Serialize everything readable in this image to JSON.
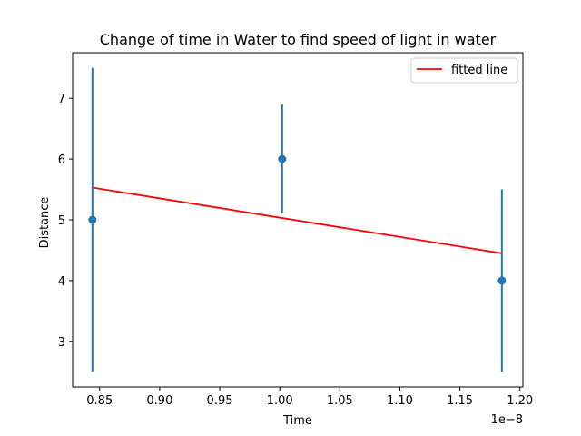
{
  "chart_data": {
    "type": "scatter",
    "title": "Change of time in Water to find speed of light in water",
    "xlabel": "Time",
    "ylabel": "Distance",
    "x_offset_label": "1e−8",
    "xlim": [
      0.8275,
      1.2025
    ],
    "ylim": [
      2.25,
      7.75
    ],
    "xticks": [
      0.85,
      0.9,
      0.95,
      1.0,
      1.05,
      1.1,
      1.15,
      1.2
    ],
    "xtick_labels": [
      "0.85",
      "0.90",
      "0.95",
      "1.00",
      "1.05",
      "1.10",
      "1.15",
      "1.20"
    ],
    "yticks": [
      3,
      4,
      5,
      6,
      7
    ],
    "ytick_labels": [
      "3",
      "4",
      "5",
      "6",
      "7"
    ],
    "series": [
      {
        "kind": "errorbar",
        "color": "#1f77b4",
        "points": [
          {
            "x": 0.844,
            "y": 5,
            "yerr_low": 2.5,
            "yerr_high": 2.5
          },
          {
            "x": 1.002,
            "y": 6,
            "yerr_low": 0.9,
            "yerr_high": 0.9
          },
          {
            "x": 1.185,
            "y": 4,
            "yerr_low": 1.5,
            "yerr_high": 1.5
          }
        ]
      },
      {
        "name": "fitted line",
        "kind": "line",
        "color": "#ff0000",
        "x": [
          0.844,
          1.185
        ],
        "y": [
          5.53,
          4.45
        ]
      }
    ],
    "legend": {
      "position": "top-right",
      "entries": [
        "fitted line"
      ]
    },
    "grid": false
  }
}
